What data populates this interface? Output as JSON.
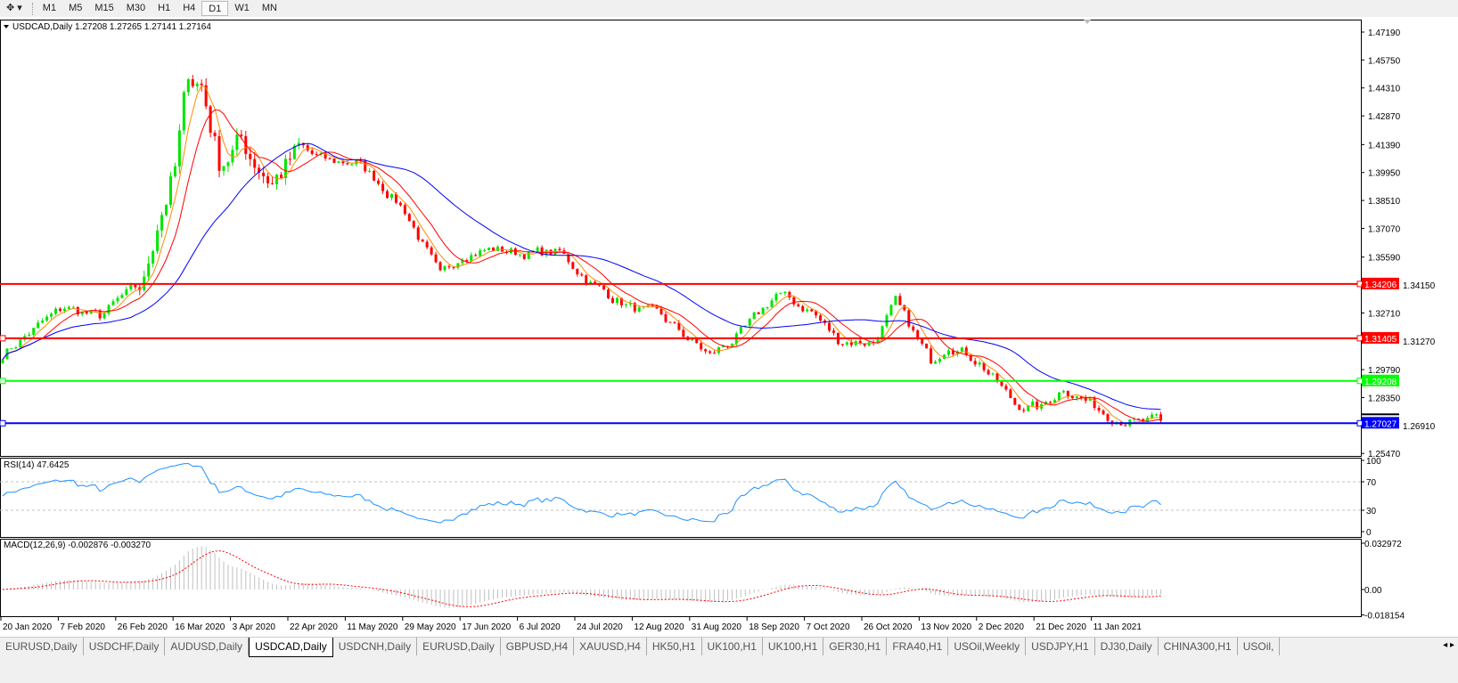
{
  "toolbar": {
    "periods": [
      "M1",
      "M5",
      "M15",
      "M30",
      "H1",
      "H4",
      "D1",
      "W1",
      "MN"
    ],
    "active": "D1"
  },
  "chart": {
    "header": "USDCAD,Daily  1.27208 1.27265 1.27141 1.27164",
    "price_ticks": [
      "1.47190",
      "1.45750",
      "1.44310",
      "1.42870",
      "1.41390",
      "1.39950",
      "1.38510",
      "1.37070",
      "1.35590",
      "1.34150",
      "1.32710",
      "1.31270",
      "1.29790",
      "1.28350",
      "1.26910",
      "1.25470"
    ],
    "hlines": [
      {
        "price": "1.34206",
        "color": "#ff0000"
      },
      {
        "price": "1.31405",
        "color": "#ff0000"
      },
      {
        "price": "1.29208",
        "color": "#00ff00"
      },
      {
        "price": "1.27027",
        "color": "#0000ff"
      }
    ],
    "colors": {
      "bull": "#00e600",
      "bear": "#ff0000",
      "ma_fast": "#ff8c00",
      "ma_mid": "#ff0000",
      "ma_slow": "#0000ff",
      "rsi": "#1e90ff",
      "macd_signal": "#ff0000",
      "macd_hist": "#c0c0c0"
    },
    "ma_periods": [
      5,
      10,
      30
    ],
    "date_labels": [
      "20 Jan 2020",
      "7 Feb 2020",
      "26 Feb 2020",
      "16 Mar 2020",
      "3 Apr 2020",
      "22 Apr 2020",
      "11 May 2020",
      "29 May 2020",
      "17 Jun 2020",
      "6 Jul 2020",
      "24 Jul 2020",
      "12 Aug 2020",
      "31 Aug 2020",
      "18 Sep 2020",
      "7 Oct 2020",
      "26 Oct 2020",
      "13 Nov 2020",
      "2 Dec 2020",
      "21 Dec 2020",
      "11 Jan 2021"
    ],
    "last_close": "1.27164"
  },
  "rsi": {
    "label": "RSI(14) 47.6425",
    "ticks": [
      "100",
      "70",
      "30",
      "0"
    ]
  },
  "macd": {
    "label": "MACD(12,26,9) -0.002876 -0.003270",
    "ticks": [
      "0.032972",
      "0.00",
      "-0.018154"
    ]
  },
  "chart_data": {
    "type": "candlestick",
    "symbol": "USDCAD",
    "timeframe": "Daily",
    "ylim": [
      1.2547,
      1.4719
    ],
    "approx_closes": [
      [
        "2020-01-20",
        1.306
      ],
      [
        "2020-01-31",
        1.322
      ],
      [
        "2020-02-07",
        1.33
      ],
      [
        "2020-02-19",
        1.325
      ],
      [
        "2020-02-26",
        1.335
      ],
      [
        "2020-03-04",
        1.342
      ],
      [
        "2020-03-09",
        1.375
      ],
      [
        "2020-03-13",
        1.4
      ],
      [
        "2020-03-18",
        1.45
      ],
      [
        "2020-03-23",
        1.445
      ],
      [
        "2020-03-27",
        1.405
      ],
      [
        "2020-04-03",
        1.415
      ],
      [
        "2020-04-14",
        1.395
      ],
      [
        "2020-04-22",
        1.41
      ],
      [
        "2020-05-01",
        1.405
      ],
      [
        "2020-05-11",
        1.405
      ],
      [
        "2020-05-18",
        1.395
      ],
      [
        "2020-05-26",
        1.38
      ],
      [
        "2020-06-05",
        1.345
      ],
      [
        "2020-06-12",
        1.358
      ],
      [
        "2020-06-23",
        1.36
      ],
      [
        "2020-07-01",
        1.358
      ],
      [
        "2020-07-14",
        1.358
      ],
      [
        "2020-07-24",
        1.341
      ],
      [
        "2020-08-05",
        1.33
      ],
      [
        "2020-08-14",
        1.325
      ],
      [
        "2020-08-31",
        1.305
      ],
      [
        "2020-09-10",
        1.318
      ],
      [
        "2020-09-21",
        1.337
      ],
      [
        "2020-10-01",
        1.328
      ],
      [
        "2020-10-09",
        1.313
      ],
      [
        "2020-10-21",
        1.312
      ],
      [
        "2020-10-28",
        1.332
      ],
      [
        "2020-11-09",
        1.302
      ],
      [
        "2020-11-13",
        1.312
      ],
      [
        "2020-11-24",
        1.302
      ],
      [
        "2020-12-04",
        1.28
      ],
      [
        "2020-12-14",
        1.278
      ],
      [
        "2020-12-21",
        1.289
      ],
      [
        "2021-01-04",
        1.275
      ],
      [
        "2021-01-13",
        1.27
      ],
      [
        "2021-01-20",
        1.27164
      ]
    ]
  },
  "tabs": [
    "EURUSD,Daily",
    "USDCHF,Daily",
    "AUDUSD,Daily",
    "USDCAD,Daily",
    "USDCNH,Daily",
    "EURUSD,Daily",
    "GBPUSD,H4",
    "XAUUSD,H4",
    "HK50,H1",
    "UK100,H1",
    "UK100,H1",
    "GER30,H1",
    "FRA40,H1",
    "USOil,Weekly",
    "USDJPY,H1",
    "DJ30,Daily",
    "CHINA300,H1",
    "USOil,"
  ],
  "active_tab": "USDCAD,Daily"
}
